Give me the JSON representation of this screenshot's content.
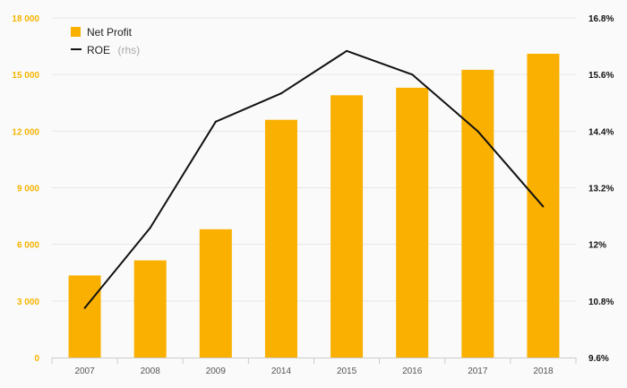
{
  "chart_data": {
    "type": "bar",
    "categories": [
      "2007",
      "2008",
      "2009",
      "2014",
      "2015",
      "2016",
      "2017",
      "2018"
    ],
    "series": [
      {
        "name": "Net Profit",
        "type": "bar",
        "axis": "left",
        "color": "#f9b000",
        "values": [
          4350,
          5150,
          6800,
          12600,
          13900,
          14300,
          15250,
          16100
        ]
      },
      {
        "name": "ROE",
        "name_note": "(rhs)",
        "type": "line",
        "axis": "right",
        "color": "#111111",
        "values": [
          10.65,
          12.35,
          14.6,
          15.2,
          16.1,
          15.6,
          14.4,
          12.8
        ]
      }
    ],
    "left_axis": {
      "ylim": [
        0,
        18000
      ],
      "ticks": [
        0,
        3000,
        6000,
        9000,
        12000,
        15000,
        18000
      ],
      "tick_labels": [
        "0",
        "3 000",
        "6 000",
        "9 000",
        "12 000",
        "15 000",
        "18 000"
      ],
      "color": "#f5b400"
    },
    "right_axis": {
      "ylim": [
        9.6,
        16.8
      ],
      "ticks": [
        9.6,
        10.8,
        12,
        13.2,
        14.4,
        15.6,
        16.8
      ],
      "tick_labels": [
        "9.6%",
        "10.8%",
        "12%",
        "13.2%",
        "14.4%",
        "15.6%",
        "16.8%"
      ],
      "color": "#111111"
    },
    "grid": true,
    "legend_position": "top-left"
  }
}
